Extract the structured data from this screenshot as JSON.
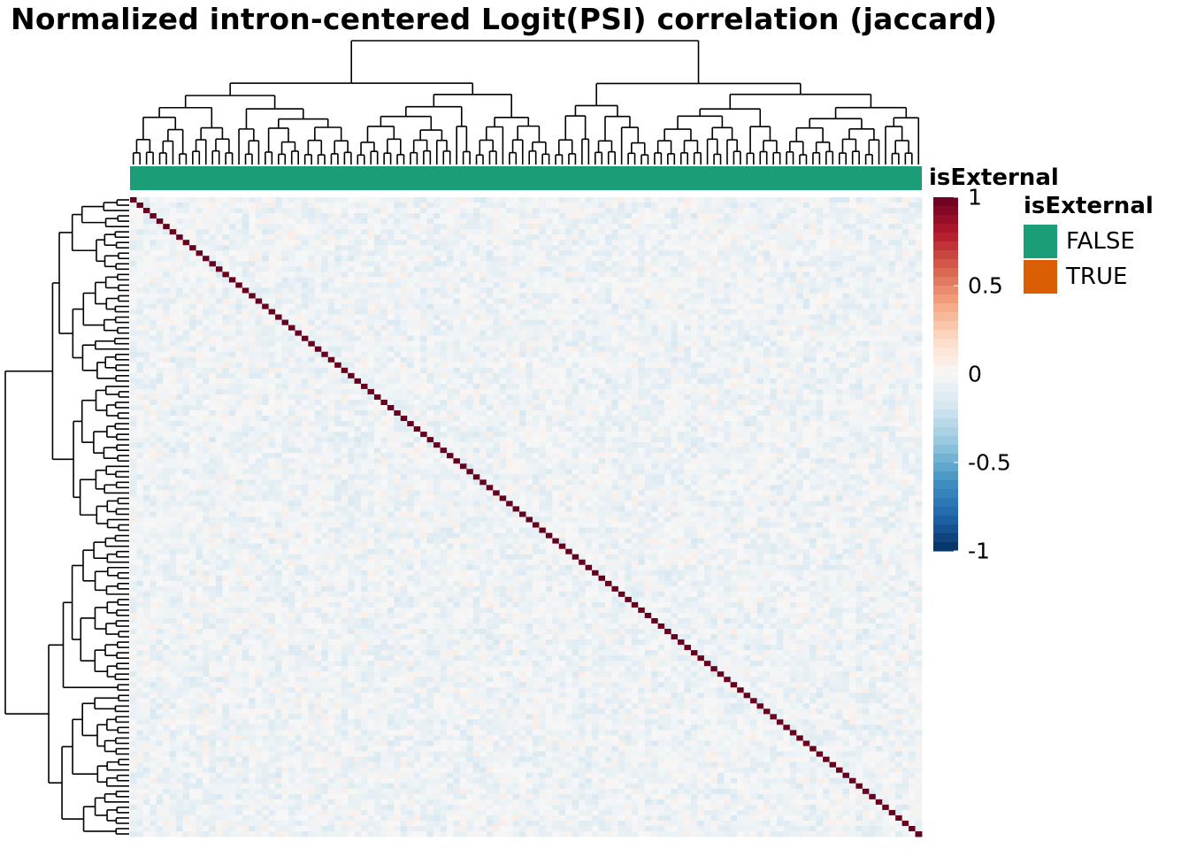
{
  "chart_data": {
    "type": "heatmap",
    "title": "Normalized intron-centered Logit(PSI) correlation (jaccard)",
    "n_samples": 120,
    "diagonal_value": 1,
    "off_diagonal_typical_range": [
      -0.15,
      0.1
    ],
    "colorbar": {
      "ticks": [
        1,
        0.5,
        0,
        -0.5,
        -1
      ],
      "tick_labels": [
        "1",
        "0.5",
        "0",
        "-0.5",
        "-1"
      ],
      "range": [
        -1,
        1
      ],
      "colors": [
        "#053061",
        "#2166ac",
        "#4393c3",
        "#92c5de",
        "#d1e5f0",
        "#f7f7f7",
        "#fddbc7",
        "#f4a582",
        "#d6604d",
        "#b2182b",
        "#67001f"
      ]
    },
    "column_annotation": {
      "name": "isExternal",
      "values_all": "FALSE"
    },
    "legend": {
      "title": "isExternal",
      "items": [
        {
          "label": "FALSE",
          "color": "#1b9e77"
        },
        {
          "label": "TRUE",
          "color": "#d95f02"
        }
      ]
    },
    "row_dendrogram": true,
    "column_dendrogram": true
  }
}
